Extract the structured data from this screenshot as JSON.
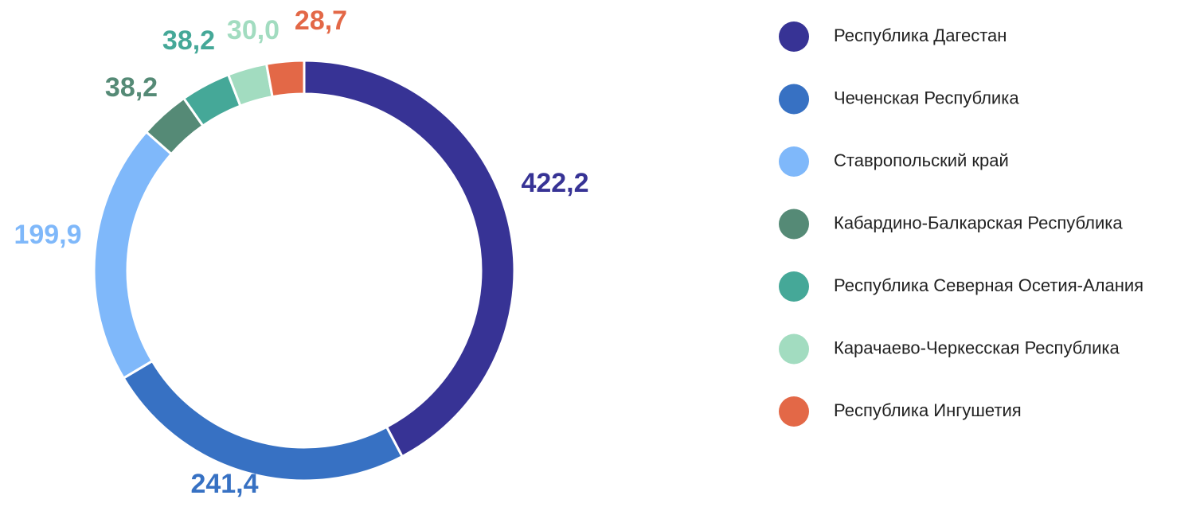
{
  "chart_data": {
    "type": "donut",
    "categories": [
      "Республика Дагестан",
      "Чеченская Республика",
      "Ставропольский край",
      "Кабардино-Балкарская Республика",
      "Республика Северная Осетия-Алания",
      "Карачаево-Черкесская Республика",
      "Республика Ингушетия"
    ],
    "values": [
      422.2,
      241.4,
      199.9,
      38.2,
      38.2,
      30.0,
      28.7
    ],
    "value_labels": [
      "422,2",
      "241,4",
      "199,9",
      "38,2",
      "38,2",
      "30,0",
      "28,7"
    ],
    "colors": [
      "#373395",
      "#3771c3",
      "#7fb8fa",
      "#558a76",
      "#45a898",
      "#a2dcc0",
      "#e36847"
    ],
    "legend": "right"
  }
}
